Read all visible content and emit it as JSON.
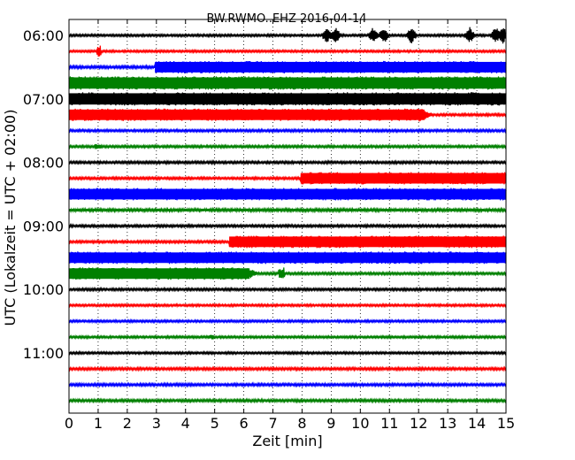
{
  "chart_data": {
    "type": "line",
    "title": "BW.RWMO..EHZ 2016-04-14",
    "xlabel": "Zeit  [min]",
    "ylabel": "UTC (Lokalzeit = UTC + 02:00)",
    "xlim": [
      0,
      15
    ],
    "x_ticks": [
      "0",
      "1",
      "2",
      "3",
      "4",
      "5",
      "6",
      "7",
      "8",
      "9",
      "10",
      "11",
      "12",
      "13",
      "14",
      "15"
    ],
    "y_tick_labels": [
      "06:00",
      "07:00",
      "08:00",
      "09:00",
      "10:00",
      "11:00"
    ],
    "grid": "vertical-dotted",
    "colors": [
      "#000000",
      "#ff0000",
      "#0000ff",
      "#008000"
    ],
    "traces": [
      {
        "label": "06:00",
        "color": "#000000",
        "base": 1.2,
        "events": [
          {
            "start": 8.7,
            "end": 15,
            "amp": 10,
            "type": "bursts"
          }
        ]
      },
      {
        "label": "06:15",
        "color": "#ff0000",
        "base": 1.2,
        "events": [
          {
            "start": 0.95,
            "end": 1.1,
            "amp": 7,
            "type": "spike"
          }
        ]
      },
      {
        "label": "06:30",
        "color": "#0000ff",
        "base": 1.5,
        "events": [
          {
            "start": 2.95,
            "end": 15,
            "amp": 7,
            "type": "block"
          }
        ]
      },
      {
        "label": "06:45",
        "color": "#008000",
        "base": 7.5,
        "events": []
      },
      {
        "label": "07:00",
        "color": "#000000",
        "base": 7.5,
        "events": []
      },
      {
        "label": "07:15",
        "color": "#ff0000",
        "base": 7,
        "events": [
          {
            "start": 0,
            "end": 12.5,
            "amp": 0,
            "type": "decay"
          }
        ]
      },
      {
        "label": "07:30",
        "color": "#0000ff",
        "base": 1.3,
        "events": []
      },
      {
        "label": "07:45",
        "color": "#008000",
        "base": 1.3,
        "events": [
          {
            "start": 0.9,
            "end": 1.1,
            "amp": 3,
            "type": "spike"
          }
        ]
      },
      {
        "label": "08:00",
        "color": "#000000",
        "base": 1.3,
        "events": []
      },
      {
        "label": "08:15",
        "color": "#ff0000",
        "base": 1.3,
        "events": [
          {
            "start": 7.95,
            "end": 15,
            "amp": 7,
            "type": "block"
          }
        ]
      },
      {
        "label": "08:30",
        "color": "#0000ff",
        "base": 7,
        "events": []
      },
      {
        "label": "08:45",
        "color": "#008000",
        "base": 1.6,
        "events": []
      },
      {
        "label": "09:00",
        "color": "#000000",
        "base": 1.3,
        "events": []
      },
      {
        "label": "09:15",
        "color": "#ff0000",
        "base": 1.3,
        "events": [
          {
            "start": 5.5,
            "end": 15,
            "amp": 7,
            "type": "block"
          }
        ]
      },
      {
        "label": "09:30",
        "color": "#0000ff",
        "base": 7,
        "events": []
      },
      {
        "label": "09:45",
        "color": "#008000",
        "base": 7,
        "events": [
          {
            "start": 0,
            "end": 6.5,
            "amp": 0,
            "type": "decay"
          },
          {
            "start": 7.2,
            "end": 7.4,
            "amp": 7,
            "type": "spike"
          }
        ]
      },
      {
        "label": "10:00",
        "color": "#000000",
        "base": 1.3,
        "events": []
      },
      {
        "label": "10:15",
        "color": "#ff0000",
        "base": 1.2,
        "events": []
      },
      {
        "label": "10:30",
        "color": "#0000ff",
        "base": 1.2,
        "events": []
      },
      {
        "label": "10:45",
        "color": "#008000",
        "base": 1.2,
        "events": [
          {
            "start": 4.8,
            "end": 4.95,
            "amp": 2.5,
            "type": "spike"
          }
        ]
      },
      {
        "label": "11:00",
        "color": "#000000",
        "base": 1.2,
        "events": []
      },
      {
        "label": "11:15",
        "color": "#ff0000",
        "base": 1.4,
        "events": []
      },
      {
        "label": "11:30",
        "color": "#0000ff",
        "base": 1.4,
        "events": []
      },
      {
        "label": "11:45",
        "color": "#008000",
        "base": 1.4,
        "events": []
      }
    ]
  }
}
